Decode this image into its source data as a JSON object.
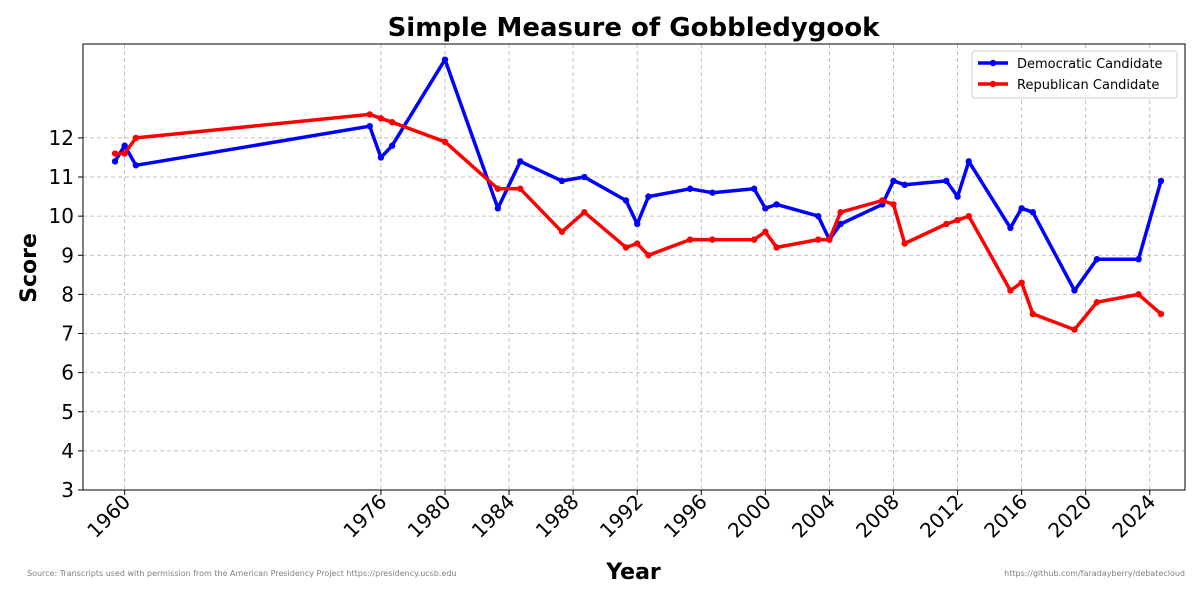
{
  "chart_data": {
    "type": "line",
    "title": "Simple Measure of Gobbledygook",
    "xlabel": "Year",
    "ylabel": "Score",
    "xlim": [
      1957.4,
      2026.2
    ],
    "ylim": [
      3,
      14.4
    ],
    "xticks": [
      1960,
      1976,
      1980,
      1984,
      1988,
      1992,
      1996,
      2000,
      2004,
      2008,
      2012,
      2016,
      2020,
      2024
    ],
    "yticks": [
      3,
      4,
      5,
      6,
      7,
      8,
      9,
      10,
      11,
      12
    ],
    "grid": true,
    "legend_position": "top-right",
    "series": [
      {
        "name": "Democratic Candidate",
        "color": "#0000ff",
        "points": [
          [
            1959.4,
            11.4
          ],
          [
            1960.0,
            11.8
          ],
          [
            1960.7,
            11.3
          ],
          [
            1975.3,
            12.3
          ],
          [
            1976.0,
            11.5
          ],
          [
            1976.7,
            11.8
          ],
          [
            1980.0,
            14.0
          ],
          [
            1983.3,
            10.2
          ],
          [
            1984.7,
            11.4
          ],
          [
            1987.3,
            10.9
          ],
          [
            1988.7,
            11.0
          ],
          [
            1991.3,
            10.4
          ],
          [
            1992.0,
            9.8
          ],
          [
            1992.7,
            10.5
          ],
          [
            1995.3,
            10.7
          ],
          [
            1996.7,
            10.6
          ],
          [
            1999.3,
            10.7
          ],
          [
            2000.0,
            10.2
          ],
          [
            2000.7,
            10.3
          ],
          [
            2003.3,
            10.0
          ],
          [
            2004.0,
            9.4
          ],
          [
            2004.7,
            9.8
          ],
          [
            2007.3,
            10.3
          ],
          [
            2008.0,
            10.9
          ],
          [
            2008.7,
            10.8
          ],
          [
            2011.3,
            10.9
          ],
          [
            2012.0,
            10.5
          ],
          [
            2012.7,
            11.4
          ],
          [
            2015.3,
            9.7
          ],
          [
            2016.0,
            10.2
          ],
          [
            2016.7,
            10.1
          ],
          [
            2019.3,
            8.1
          ],
          [
            2020.7,
            8.9
          ],
          [
            2023.3,
            8.9
          ],
          [
            2024.7,
            10.9
          ]
        ]
      },
      {
        "name": "Republican Candidate",
        "color": "#ff0000",
        "points": [
          [
            1959.4,
            11.6
          ],
          [
            1960.0,
            11.6
          ],
          [
            1960.7,
            12.0
          ],
          [
            1975.3,
            12.6
          ],
          [
            1976.0,
            12.5
          ],
          [
            1976.7,
            12.4
          ],
          [
            1980.0,
            11.9
          ],
          [
            1983.3,
            10.7
          ],
          [
            1984.7,
            10.7
          ],
          [
            1987.3,
            9.6
          ],
          [
            1988.7,
            10.1
          ],
          [
            1991.3,
            9.2
          ],
          [
            1992.0,
            9.3
          ],
          [
            1992.7,
            9.0
          ],
          [
            1995.3,
            9.4
          ],
          [
            1996.7,
            9.4
          ],
          [
            1999.3,
            9.4
          ],
          [
            2000.0,
            9.6
          ],
          [
            2000.7,
            9.2
          ],
          [
            2003.3,
            9.4
          ],
          [
            2004.0,
            9.4
          ],
          [
            2004.7,
            10.1
          ],
          [
            2007.3,
            10.4
          ],
          [
            2008.0,
            10.3
          ],
          [
            2008.7,
            9.3
          ],
          [
            2011.3,
            9.8
          ],
          [
            2012.0,
            9.9
          ],
          [
            2012.7,
            10.0
          ],
          [
            2015.3,
            8.1
          ],
          [
            2016.0,
            8.3
          ],
          [
            2016.7,
            7.5
          ],
          [
            2019.3,
            7.1
          ],
          [
            2020.7,
            7.8
          ],
          [
            2023.3,
            8.0
          ],
          [
            2024.7,
            7.5
          ]
        ]
      }
    ]
  },
  "footer": {
    "source": "Source: Transcripts used with permission from the American Presidency Project https://presidency.ucsb.edu",
    "repo": "https://github.com/faradayberry/debatecloud"
  }
}
